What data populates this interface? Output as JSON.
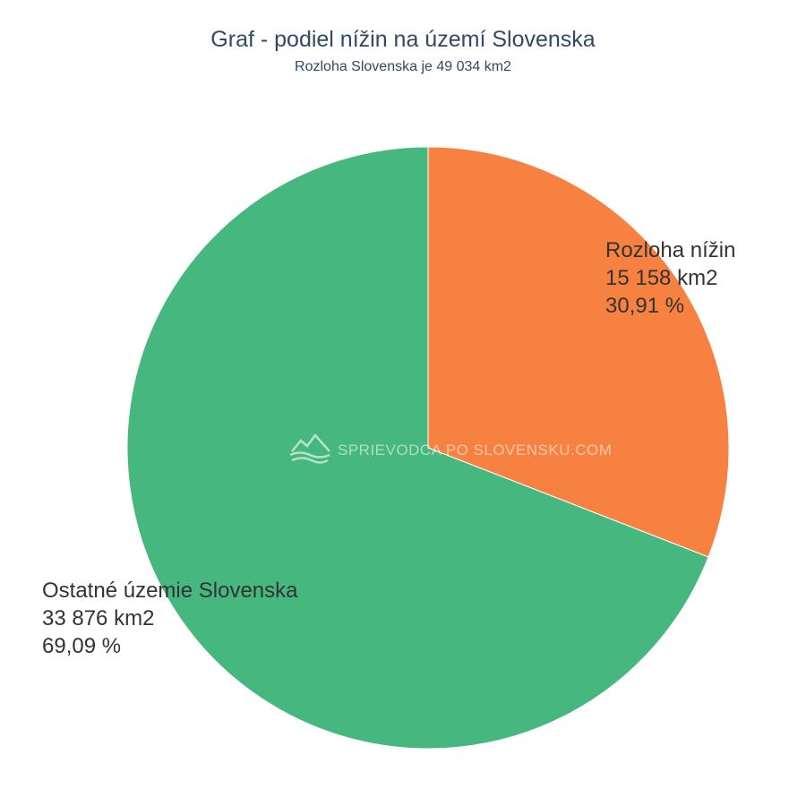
{
  "chart_data": {
    "type": "pie",
    "title": "Graf - podiel nížin na území Slovenska",
    "subtitle": "Rozloha Slovenska je 49 034 km2",
    "slices": [
      {
        "name": "Rozloha nížin",
        "value": 15158,
        "value_label": "15 158 km2",
        "percent": 30.91,
        "percent_label": "30,91 %",
        "color": "#f78140"
      },
      {
        "name": "Ostatné územie Slovenska",
        "value": 33876,
        "value_label": "33 876 km2",
        "percent": 69.09,
        "percent_label": "69,09 %",
        "color": "#46b77f"
      }
    ],
    "start_angle": "12 o'clock",
    "direction": "clockwise"
  },
  "watermark": {
    "text": "SPRIEVODCA PO SLOVENSKU.COM",
    "icon": "mountains-logo-icon"
  }
}
